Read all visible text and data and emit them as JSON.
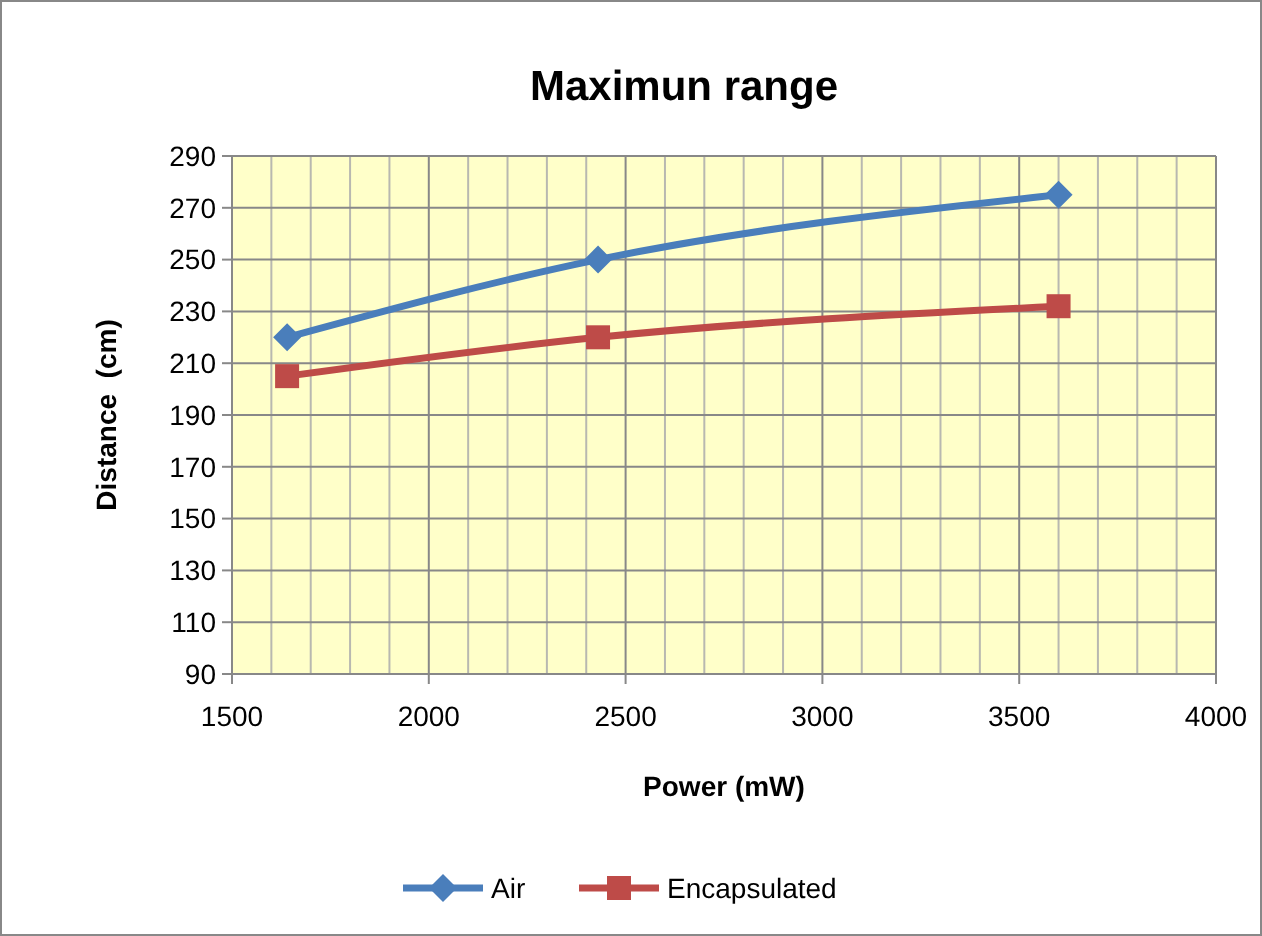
{
  "chart_data": {
    "type": "line",
    "title": "Maximun range",
    "xlabel": "Power (mW)",
    "ylabel": "Distance  (cm)",
    "xlim": [
      1500,
      4000
    ],
    "xticks": [
      1500,
      {
        "value": 1600,
        "label": null
      },
      {
        "value": 1700,
        "label": null
      },
      {
        "value": 1800,
        "label": null
      },
      {
        "value": 1900,
        "label": null
      },
      2000,
      {
        "value": 2100,
        "label": null
      },
      {
        "value": 2200,
        "label": null
      },
      {
        "value": 2300,
        "label": null
      },
      {
        "value": 2400,
        "label": null
      },
      2500,
      {
        "value": 2600,
        "label": null
      },
      {
        "value": 2700,
        "label": null
      },
      {
        "value": 2800,
        "label": null
      },
      {
        "value": 2900,
        "label": null
      },
      3000,
      {
        "value": 3100,
        "label": null
      },
      {
        "value": 3200,
        "label": null
      },
      {
        "value": 3300,
        "label": null
      },
      {
        "value": 3400,
        "label": null
      },
      3500,
      {
        "value": 3600,
        "label": null
      },
      {
        "value": 3700,
        "label": null
      },
      {
        "value": 3800,
        "label": null
      },
      {
        "value": 3900,
        "label": null
      },
      4000
    ],
    "ylim": [
      90,
      290
    ],
    "yticks": [
      90,
      110,
      130,
      150,
      170,
      190,
      210,
      230,
      250,
      270,
      290
    ],
    "grid": true,
    "legend": "bottom",
    "x": [
      1640,
      2430,
      3600
    ],
    "series": [
      {
        "name": "Air",
        "color": "#4a7ebb",
        "values": [
          220,
          250,
          275
        ],
        "marker": "diamond"
      },
      {
        "name": "Encapsulated",
        "color": "#be4b48",
        "values": [
          205,
          220,
          232
        ],
        "marker": "square"
      }
    ]
  }
}
